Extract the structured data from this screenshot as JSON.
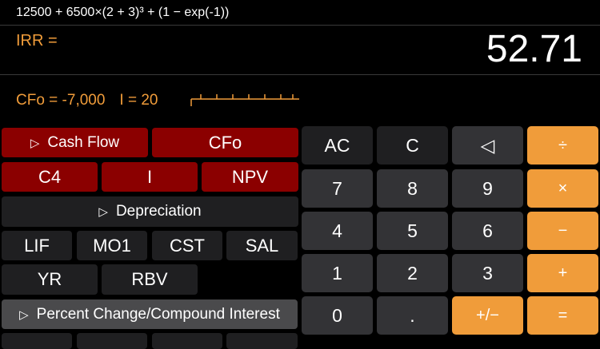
{
  "display": {
    "formula": "12500 + 6500×(2 + 3)³ + (1 − exp(-1))",
    "label": "IRR =",
    "result": "52.71",
    "cfo": "CFo = -7,000",
    "i": "I = 20"
  },
  "functions": {
    "cash_flow": "Cash Flow",
    "cfo": "CFo",
    "c4": "C4",
    "i": "I",
    "npv": "NPV",
    "depreciation": "Depreciation",
    "lif": "LIF",
    "mo1": "MO1",
    "cst": "CST",
    "sal": "SAL",
    "yr": "YR",
    "rbv": "RBV",
    "percent": "Percent Change/Compound Interest"
  },
  "keypad": {
    "ac": "AC",
    "c": "C",
    "back": "◁",
    "div": "÷",
    "k7": "7",
    "k8": "8",
    "k9": "9",
    "mul": "×",
    "k4": "4",
    "k5": "5",
    "k6": "6",
    "sub": "−",
    "k1": "1",
    "k2": "2",
    "k3": "3",
    "add": "+",
    "k0": "0",
    "dot": ".",
    "neg": "+/−",
    "eq": "="
  },
  "colors": {
    "accent": "#f09c3a",
    "function_red": "#8b0000"
  }
}
